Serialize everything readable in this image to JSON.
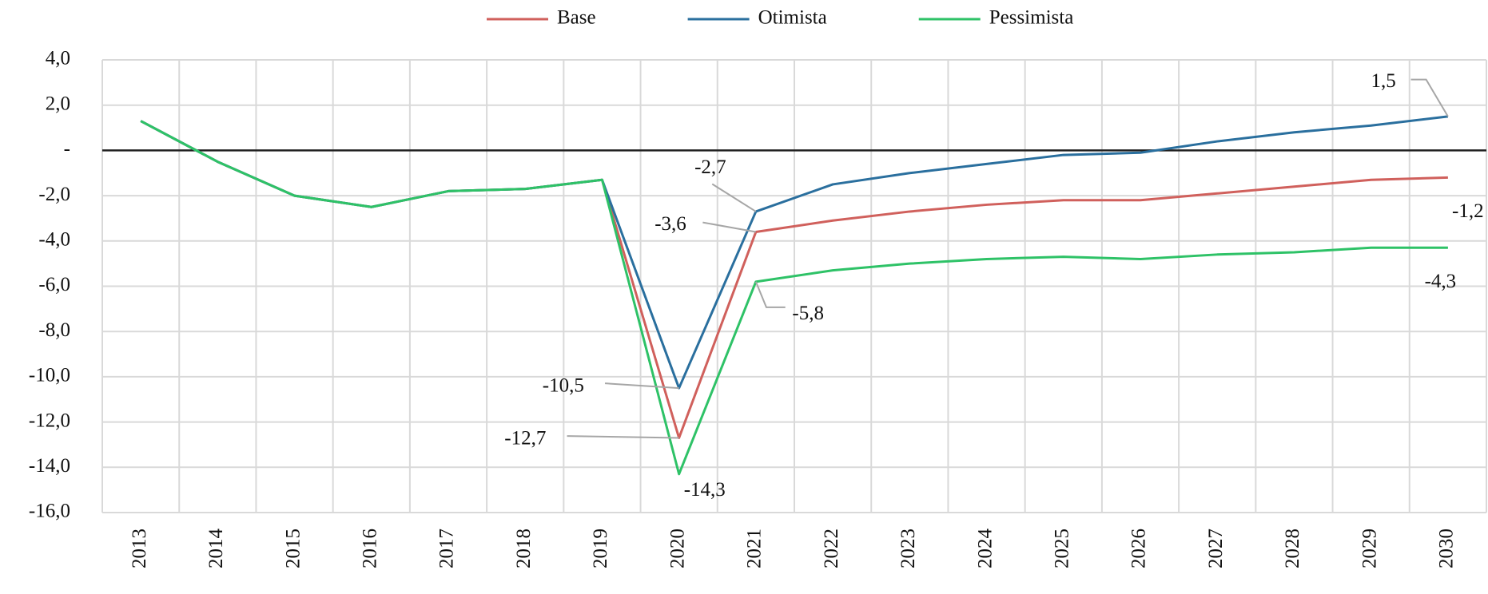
{
  "chart_data": {
    "type": "line",
    "categories": [
      "2013",
      "2014",
      "2015",
      "2016",
      "2017",
      "2018",
      "2019",
      "2020",
      "2021",
      "2022",
      "2023",
      "2024",
      "2025",
      "2026",
      "2027",
      "2028",
      "2029",
      "2030"
    ],
    "series": [
      {
        "name": "Base",
        "color": "#d0605c",
        "values": [
          1.3,
          -0.5,
          -2.0,
          -2.5,
          -1.8,
          -1.7,
          -1.3,
          -12.7,
          -3.6,
          -3.1,
          -2.7,
          -2.4,
          -2.2,
          -2.2,
          -1.9,
          -1.6,
          -1.3,
          -1.2
        ],
        "value_labels": [
          null,
          null,
          null,
          null,
          null,
          null,
          null,
          "-12,7",
          "-3,6",
          null,
          null,
          null,
          null,
          null,
          null,
          null,
          null,
          "-1,2"
        ]
      },
      {
        "name": "Otimista",
        "color": "#2a6f9e",
        "values": [
          1.3,
          -0.5,
          -2.0,
          -2.5,
          -1.8,
          -1.7,
          -1.3,
          -10.5,
          -2.7,
          -1.5,
          -1.0,
          -0.6,
          -0.2,
          -0.1,
          0.4,
          0.8,
          1.1,
          1.5
        ],
        "value_labels": [
          null,
          null,
          null,
          null,
          null,
          null,
          null,
          "-10,5",
          "-2,7",
          null,
          null,
          null,
          null,
          null,
          null,
          null,
          null,
          "1,5"
        ]
      },
      {
        "name": "Pessimista",
        "color": "#2ec267",
        "values": [
          1.3,
          -0.5,
          -2.0,
          -2.5,
          -1.8,
          -1.7,
          -1.3,
          -14.3,
          -5.8,
          -5.3,
          -5.0,
          -4.8,
          -4.7,
          -4.8,
          -4.6,
          -4.5,
          -4.3,
          -4.3
        ],
        "value_labels": [
          null,
          null,
          null,
          null,
          null,
          null,
          null,
          "-14,3",
          "-5,8",
          null,
          null,
          null,
          null,
          null,
          null,
          null,
          null,
          "-4,3"
        ]
      }
    ],
    "ylim": [
      -16,
      4
    ],
    "yticks": [
      {
        "value": 4,
        "label": "4,0"
      },
      {
        "value": 2,
        "label": "2,0"
      },
      {
        "value": 0,
        "label": "-"
      },
      {
        "value": -2,
        "label": "-2,0"
      },
      {
        "value": -4,
        "label": "-4,0"
      },
      {
        "value": -6,
        "label": "-6,0"
      },
      {
        "value": -8,
        "label": "-8,0"
      },
      {
        "value": -10,
        "label": "-10,0"
      },
      {
        "value": -12,
        "label": "-12,0"
      },
      {
        "value": -14,
        "label": "-14,0"
      },
      {
        "value": -16,
        "label": "-16,0"
      }
    ],
    "grid": true,
    "legend": "top"
  }
}
